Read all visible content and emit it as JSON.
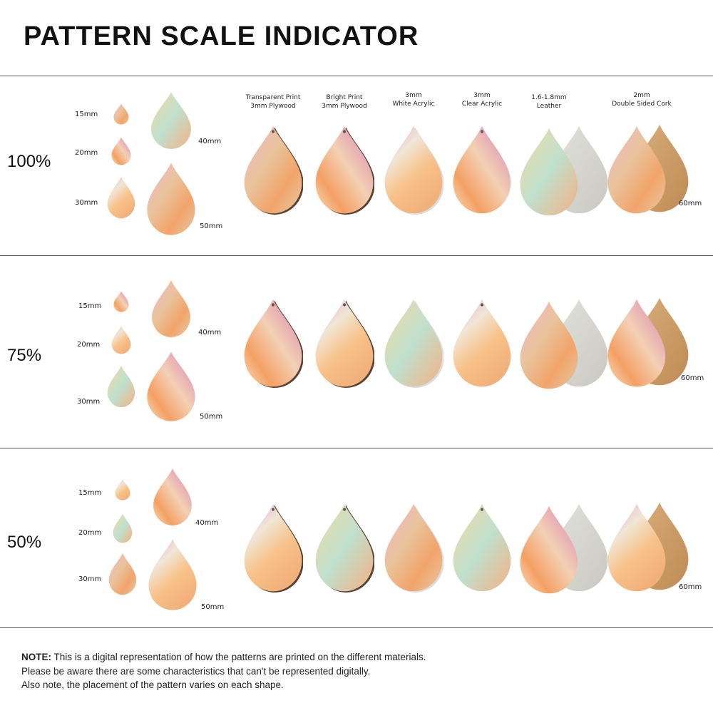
{
  "title": "PATTERN SCALE INDICATOR",
  "materials": [
    {
      "line1": "Transparent Print",
      "line2": "3mm Plywood"
    },
    {
      "line1": "Bright Print",
      "line2": "3mm Plywood"
    },
    {
      "line1": "3mm",
      "line2": "White Acrylic"
    },
    {
      "line1": "3mm",
      "line2": "Clear Acrylic"
    },
    {
      "line1": "1.6-1.8mm",
      "line2": "Leather"
    },
    {
      "line1": "2mm",
      "line2": "Double Sided Cork"
    }
  ],
  "sections": [
    {
      "scale": "100%",
      "sizes": [
        "15mm",
        "20mm",
        "30mm",
        "40mm",
        "50mm"
      ],
      "material_size": "60mm"
    },
    {
      "scale": "75%",
      "sizes": [
        "15mm",
        "20mm",
        "30mm",
        "40mm",
        "50mm"
      ],
      "material_size": "60mm"
    },
    {
      "scale": "50%",
      "sizes": [
        "15mm",
        "20mm",
        "30mm",
        "40mm",
        "50mm"
      ],
      "material_size": "60mm"
    }
  ],
  "note": {
    "label": "NOTE:",
    "line1": " This is a digital representation of how the patterns are printed on the different materials.",
    "line2": "Please be aware there are some characteristics that can't be represented digitally.",
    "line3": "Also note, the placement of the pattern varies on each shape."
  }
}
